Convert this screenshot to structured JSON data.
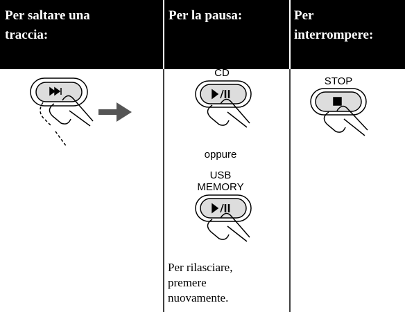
{
  "header": {
    "columns": [
      {
        "lines": [
          "Per saltare una",
          "traccia:"
        ]
      },
      {
        "lines": [
          "Per la pausa:"
        ]
      },
      {
        "lines": [
          "Per",
          "interrompere:"
        ]
      }
    ]
  },
  "column2": {
    "label_top": "CD",
    "separator": "oppure",
    "label_bottom": [
      "USB",
      "MEMORY"
    ],
    "note": [
      "Per rilasciare,",
      "premere",
      "nuovamente."
    ]
  },
  "column3": {
    "label": "STOP"
  }
}
